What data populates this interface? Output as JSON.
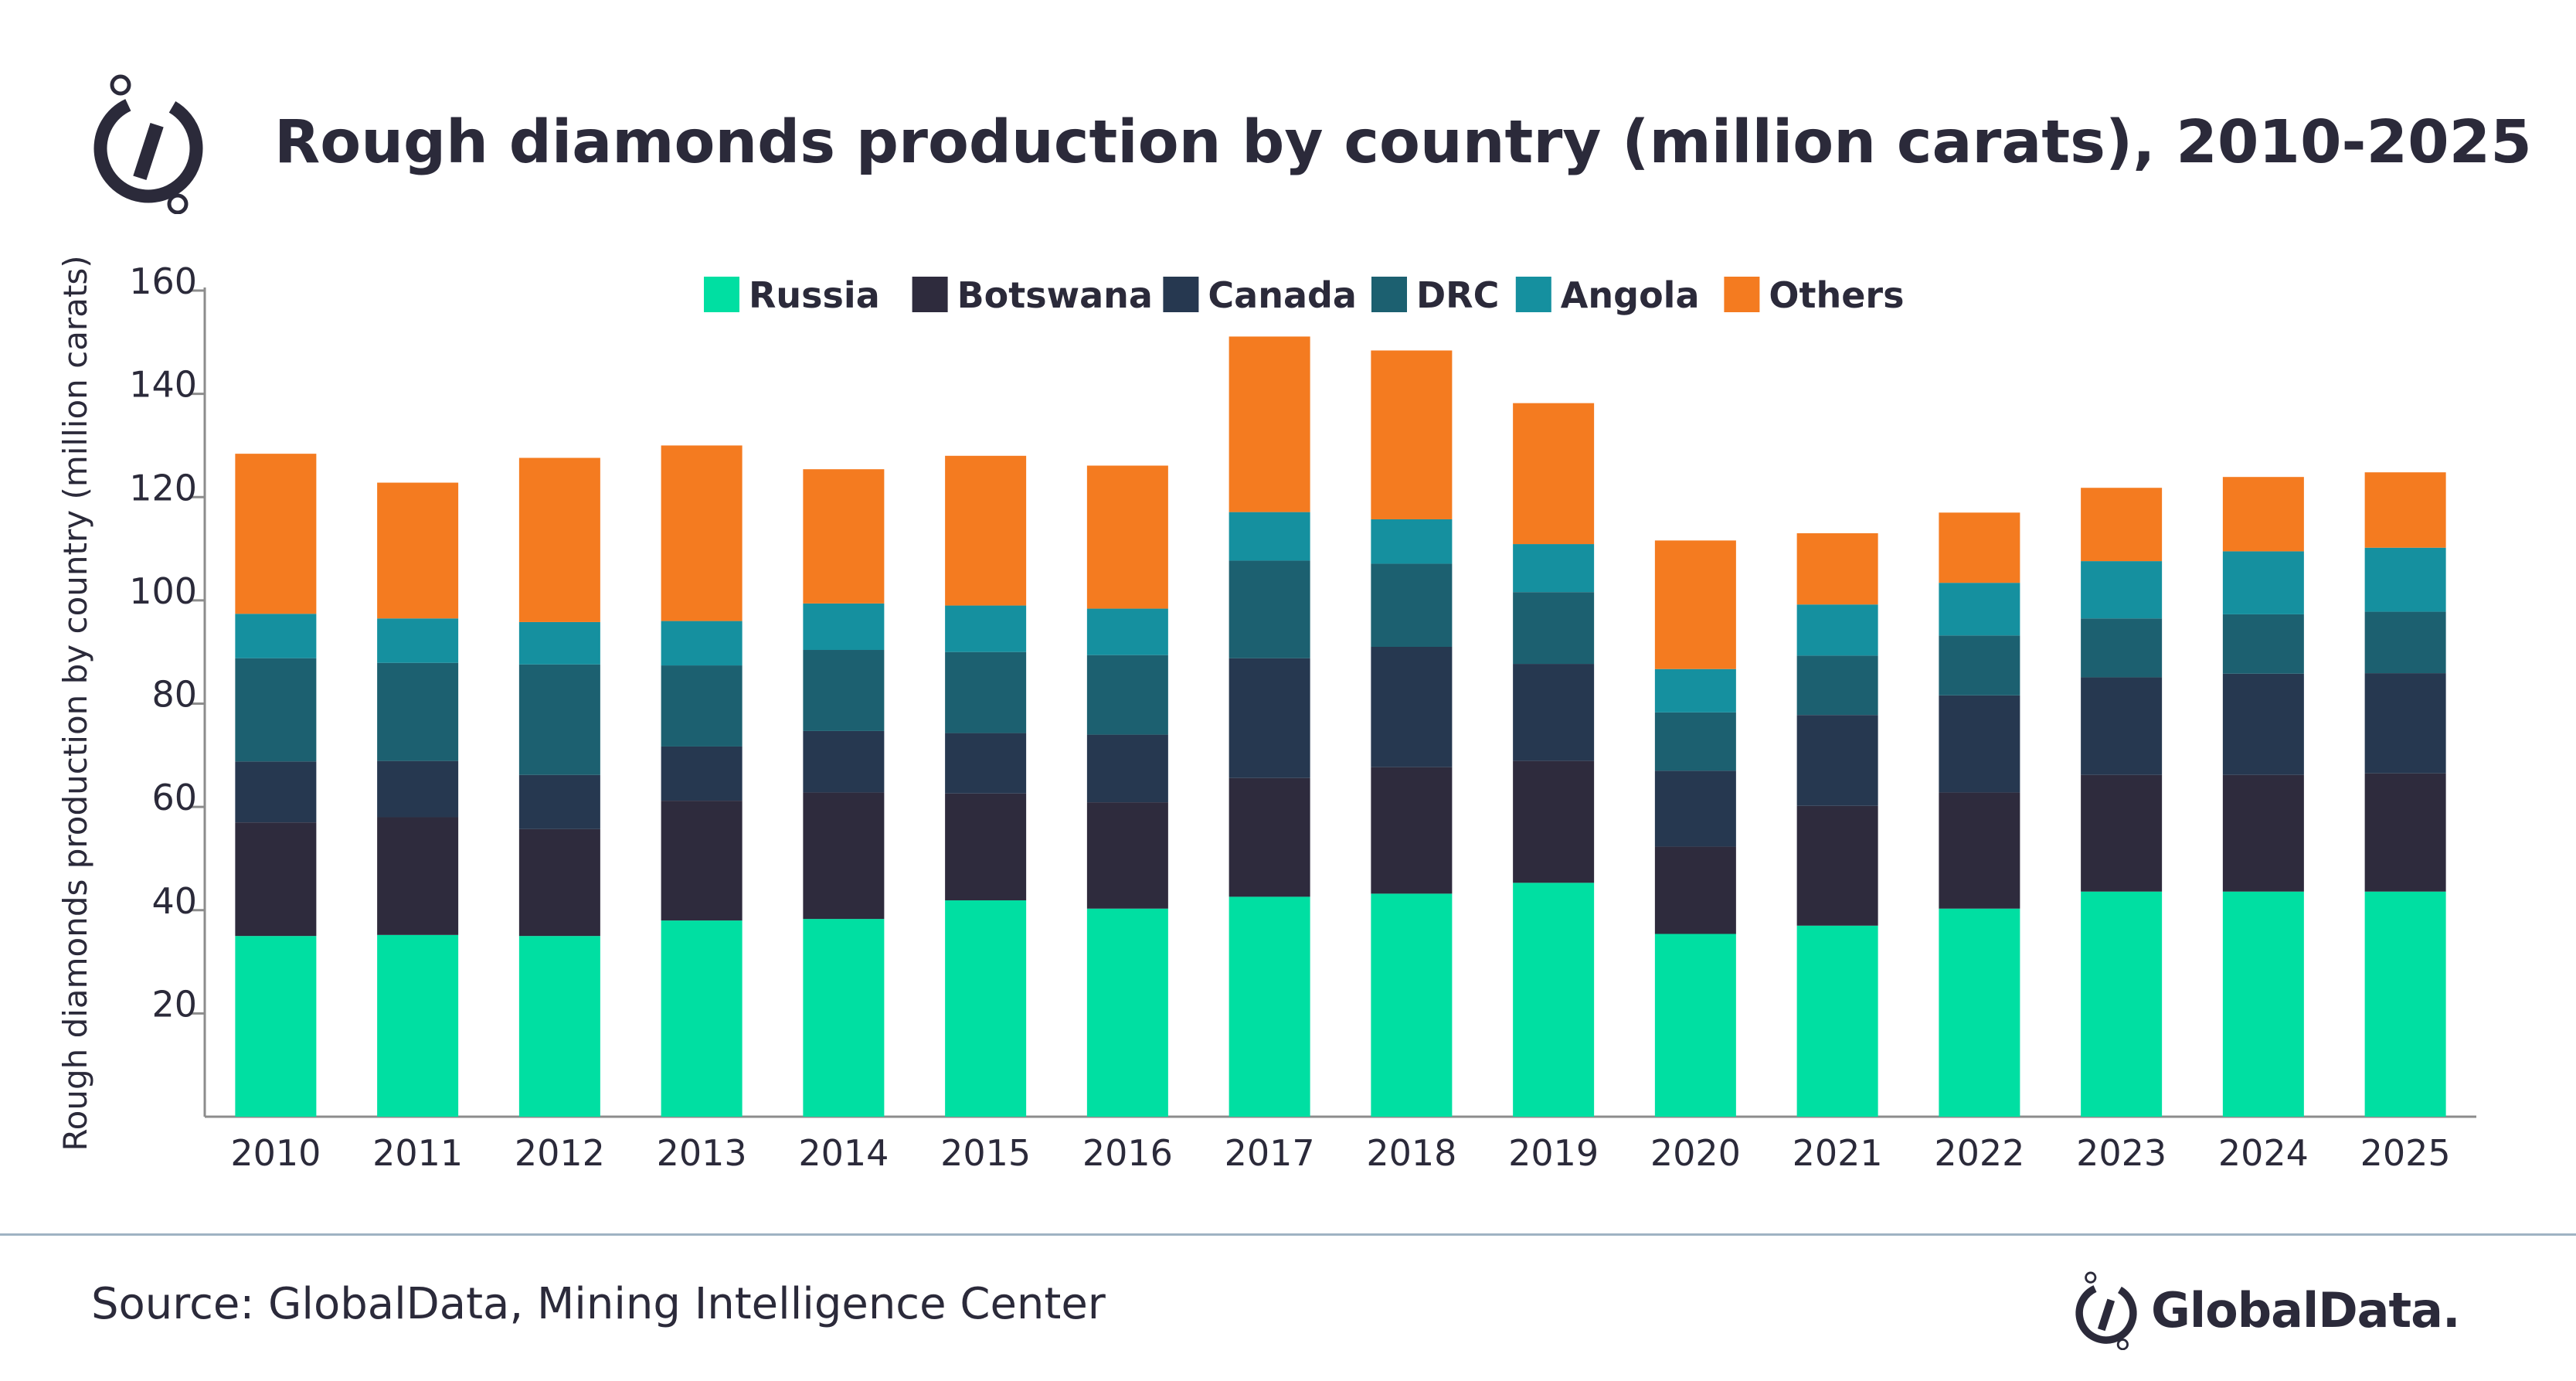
{
  "title": "Rough diamonds production by country (million carats), 2010-2025",
  "source": "Source: GlobalData, Mining Intelligence Center",
  "brand": {
    "name": "GlobalData.",
    "logo_icon": "globaldata-logo-icon"
  },
  "colors": {
    "Russia": "#00dfa2",
    "Botswana": "#2e2b3d",
    "Canada": "#263850",
    "DRC": "#1c6070",
    "Angola": "#15909f",
    "Others": "#f47b20"
  },
  "chart_data": {
    "type": "bar",
    "stacked": true,
    "ylabel": "Rough diamonds production by country (million carats)",
    "xlabel": "",
    "ylim": [
      0,
      160
    ],
    "yticks": [
      20,
      40,
      60,
      80,
      100,
      120,
      140,
      160
    ],
    "grid": false,
    "legend_position": "top",
    "categories": [
      "2010",
      "2011",
      "2012",
      "2013",
      "2014",
      "2015",
      "2016",
      "2017",
      "2018",
      "2019",
      "2020",
      "2021",
      "2022",
      "2023",
      "2024",
      "2025"
    ],
    "series": [
      {
        "name": "Russia",
        "values": [
          35,
          35.2,
          35,
          38,
          38.3,
          41.9,
          40.3,
          42.6,
          43.2,
          45.3,
          35.4,
          37,
          40.3,
          43.6,
          43.6,
          43.6
        ]
      },
      {
        "name": "Botswana",
        "values": [
          22,
          22.8,
          20.7,
          23.2,
          24.5,
          20.7,
          20.6,
          23,
          24.5,
          23.6,
          16.9,
          23.2,
          22.5,
          22.6,
          22.6,
          22.9
        ]
      },
      {
        "name": "Canada",
        "values": [
          11.8,
          10.9,
          10.5,
          10.5,
          11.9,
          11.7,
          13.1,
          23.2,
          23.3,
          18.8,
          14.7,
          17.6,
          18.8,
          18.9,
          19.6,
          19.4
        ]
      },
      {
        "name": "DRC",
        "values": [
          20,
          19,
          21.4,
          15.7,
          15.7,
          15.7,
          15.4,
          18.9,
          16.1,
          13.9,
          11.3,
          11.5,
          11.6,
          11.4,
          11.5,
          11.9
        ]
      },
      {
        "name": "Angola",
        "values": [
          8.6,
          8.6,
          8.2,
          8.6,
          9,
          9,
          9,
          9.4,
          8.6,
          9.3,
          8.4,
          9.9,
          10.2,
          11.1,
          12.2,
          12.4
        ]
      },
      {
        "name": "Others",
        "values": [
          31,
          26.3,
          31.8,
          34,
          26,
          29,
          27.7,
          34,
          32.7,
          27.3,
          24.9,
          13.8,
          13.6,
          14.2,
          14.4,
          14.6
        ]
      }
    ]
  }
}
